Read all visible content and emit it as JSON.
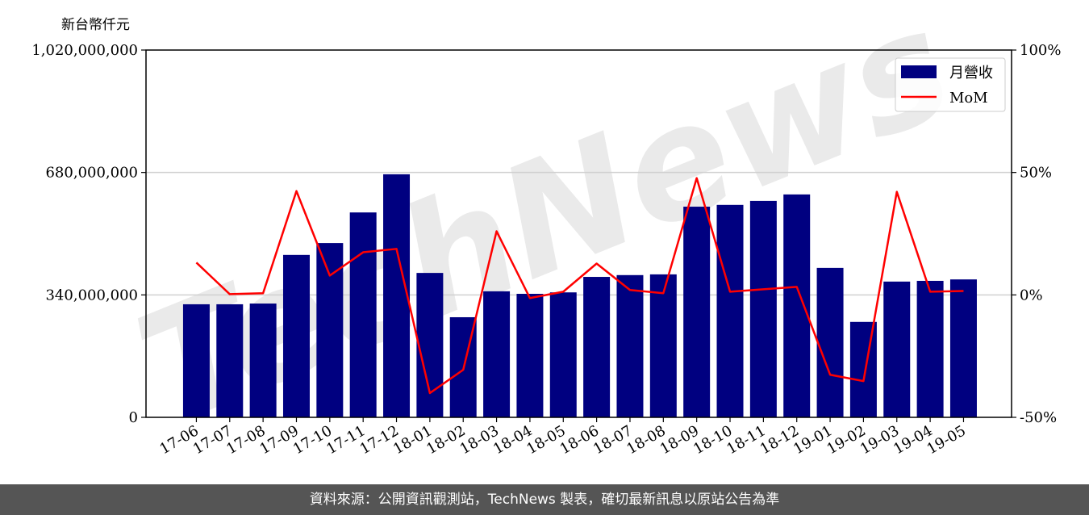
{
  "chart_data": {
    "type": "bar",
    "unit_label": "新台幣仟元",
    "categories": [
      "17-06",
      "17-07",
      "17-08",
      "17-09",
      "17-10",
      "17-11",
      "17-12",
      "18-01",
      "18-02",
      "18-03",
      "18-04",
      "18-05",
      "18-06",
      "18-07",
      "18-08",
      "18-09",
      "18-10",
      "18-11",
      "18-12",
      "19-01",
      "19-02",
      "19-03",
      "19-04",
      "19-05"
    ],
    "series": [
      {
        "name": "月營收",
        "type": "bar",
        "axis": "left",
        "color": "#000080",
        "values": [
          314000000,
          314000000,
          316000000,
          451000000,
          484000000,
          569000000,
          675000000,
          401000000,
          278000000,
          350000000,
          343000000,
          347000000,
          390000000,
          395000000,
          397000000,
          585000000,
          590000000,
          601000000,
          619000000,
          415000000,
          265000000,
          377000000,
          379000000,
          383000000
        ]
      },
      {
        "name": "MoM",
        "type": "line",
        "axis": "right",
        "color": "#ff0000",
        "values": [
          13.2,
          0.3,
          0.7,
          42.4,
          7.9,
          17.4,
          18.8,
          -40.1,
          -30.6,
          26.0,
          -1.3,
          1.3,
          12.8,
          2.0,
          0.7,
          47.7,
          1.3,
          2.3,
          3.3,
          -32.6,
          -35.2,
          42.1,
          1.3,
          1.6
        ]
      }
    ],
    "ylim_left": [
      0,
      1020000000
    ],
    "yticks_left": [
      "0",
      "340,000,000",
      "680,000,000",
      "1,020,000,000"
    ],
    "ylim_right": [
      -50,
      100
    ],
    "yticks_right": [
      "-50%",
      "0%",
      "50%",
      "100%"
    ],
    "grid": "horizontal",
    "legend_position": "top-right"
  },
  "watermark": "TechNews",
  "footer": "資料來源：公開資訊觀測站，TechNews 製表，確切最新訊息以原站公告為準"
}
